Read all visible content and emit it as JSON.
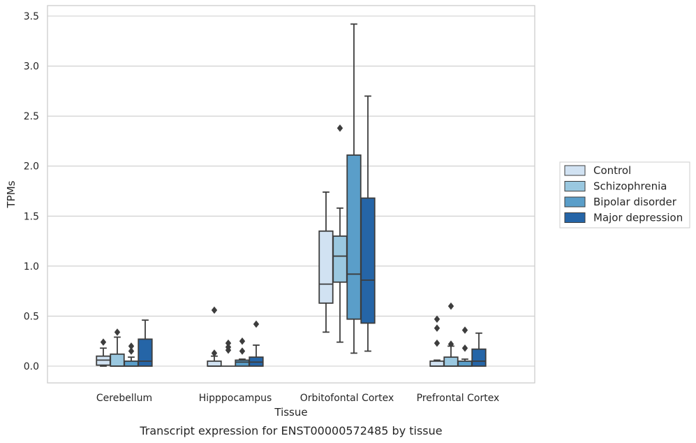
{
  "caption": "Transcript expression for ENST00000572485 by tissue",
  "chart_data": {
    "type": "boxplot",
    "xlabel": "Tissue",
    "ylabel": "TPMs",
    "ylim": [
      -0.17,
      3.6
    ],
    "yticks": [
      "0.0",
      "0.5",
      "1.0",
      "1.5",
      "2.0",
      "2.5",
      "3.0",
      "3.5"
    ],
    "grid": "horizontal",
    "legend_position": "right",
    "categories": [
      "Cerebellum",
      "Hipppocampus",
      "Orbitofontal Cortex",
      "Prefrontal Cortex"
    ],
    "series": [
      {
        "name": "Control",
        "color": "#d1e2f2",
        "boxes": [
          {
            "whislo": 0.0,
            "q1": 0.01,
            "med": 0.06,
            "q3": 0.1,
            "whishi": 0.18,
            "fliers": [
              0.24
            ]
          },
          {
            "whislo": 0.0,
            "q1": 0.0,
            "med": 0.0,
            "q3": 0.05,
            "whishi": 0.1,
            "fliers": [
              0.13,
              0.56
            ]
          },
          {
            "whislo": 0.34,
            "q1": 0.63,
            "med": 0.82,
            "q3": 1.35,
            "whishi": 1.74,
            "fliers": []
          },
          {
            "whislo": 0.0,
            "q1": 0.0,
            "med": 0.0,
            "q3": 0.05,
            "whishi": 0.06,
            "fliers": [
              0.23,
              0.38,
              0.47
            ]
          }
        ]
      },
      {
        "name": "Schizophrenia",
        "color": "#9ac8e0",
        "boxes": [
          {
            "whislo": 0.0,
            "q1": 0.0,
            "med": 0.0,
            "q3": 0.12,
            "whishi": 0.29,
            "fliers": [
              0.34
            ]
          },
          {
            "whislo": 0.0,
            "q1": 0.0,
            "med": 0.0,
            "q3": 0.0,
            "whishi": 0.0,
            "fliers": [
              0.16,
              0.19,
              0.23
            ]
          },
          {
            "whislo": 0.24,
            "q1": 0.84,
            "med": 1.1,
            "q3": 1.3,
            "whishi": 1.58,
            "fliers": [
              2.38
            ]
          },
          {
            "whislo": 0.0,
            "q1": 0.0,
            "med": 0.0,
            "q3": 0.09,
            "whishi": 0.2,
            "fliers": [
              0.22,
              0.6
            ]
          }
        ]
      },
      {
        "name": "Bipolar disorder",
        "color": "#5a9ec9",
        "boxes": [
          {
            "whislo": 0.0,
            "q1": 0.0,
            "med": 0.0,
            "q3": 0.05,
            "whishi": 0.09,
            "fliers": [
              0.15,
              0.2
            ]
          },
          {
            "whislo": 0.0,
            "q1": 0.0,
            "med": 0.04,
            "q3": 0.06,
            "whishi": 0.07,
            "fliers": [
              0.15,
              0.25
            ]
          },
          {
            "whislo": 0.13,
            "q1": 0.47,
            "med": 0.92,
            "q3": 2.11,
            "whishi": 3.42,
            "fliers": []
          },
          {
            "whislo": 0.0,
            "q1": 0.0,
            "med": 0.0,
            "q3": 0.05,
            "whishi": 0.07,
            "fliers": [
              0.18,
              0.36
            ]
          }
        ]
      },
      {
        "name": "Major depression",
        "color": "#2565a7",
        "boxes": [
          {
            "whislo": 0.0,
            "q1": 0.0,
            "med": 0.05,
            "q3": 0.27,
            "whishi": 0.46,
            "fliers": []
          },
          {
            "whislo": 0.0,
            "q1": 0.0,
            "med": 0.04,
            "q3": 0.09,
            "whishi": 0.21,
            "fliers": [
              0.42
            ]
          },
          {
            "whislo": 0.15,
            "q1": 0.43,
            "med": 0.86,
            "q3": 1.68,
            "whishi": 2.7,
            "fliers": []
          },
          {
            "whislo": 0.0,
            "q1": 0.0,
            "med": 0.05,
            "q3": 0.17,
            "whishi": 0.33,
            "fliers": []
          }
        ]
      }
    ]
  }
}
